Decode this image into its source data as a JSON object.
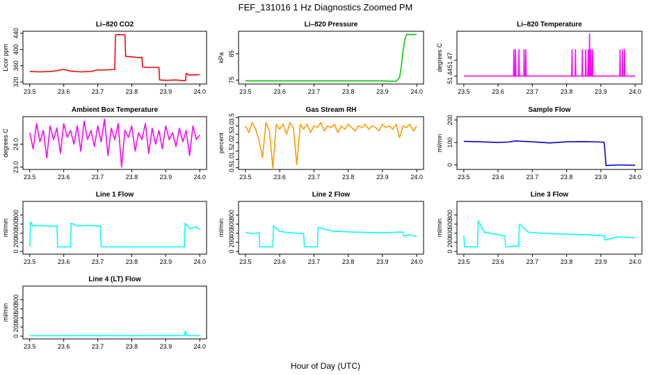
{
  "figure": {
    "title": "FEF_131016  1 Hz Diagnostics Zoomed PM",
    "xlabel": "Hour of Day (UTC)"
  },
  "chart_data": [
    {
      "type": "line",
      "title": "Li–820 CO2",
      "ylabel": "Licor ppm",
      "color": "#ff0000",
      "xlim": [
        23.48,
        24.02
      ],
      "ylim": [
        315,
        445
      ],
      "xticks": [
        23.5,
        23.6,
        23.7,
        23.8,
        23.9,
        24.0
      ],
      "xtick_labels": [
        "23.5",
        "23.6",
        "23.7",
        "23.8",
        "23.9",
        "24.0"
      ],
      "yticks": [
        320,
        360,
        400,
        440
      ],
      "ytick_labels": [
        "320",
        "360",
        "400",
        "440"
      ],
      "series": [
        {
          "x": [
            23.5,
            23.53,
            23.56,
            23.58,
            23.6,
            23.62,
            23.65,
            23.68,
            23.7,
            23.71,
            23.73,
            23.75,
            23.752,
            23.76,
            23.78,
            23.782,
            23.8,
            23.82,
            23.83,
            23.832,
            23.85,
            23.87,
            23.88,
            23.882,
            23.9,
            23.93,
            23.958,
            23.96,
            23.97,
            24.0
          ],
          "y": [
            346,
            345,
            346,
            348,
            351,
            347,
            345,
            346,
            350,
            349,
            350,
            351,
            436,
            437,
            436,
            383,
            382,
            380,
            381,
            357,
            356,
            356,
            355,
            325,
            324,
            325,
            323,
            341,
            337,
            338
          ]
        }
      ]
    },
    {
      "type": "line",
      "title": "Li–820 Pressure",
      "ylabel": "kPa",
      "color": "#00cc00",
      "xlim": [
        23.48,
        24.02
      ],
      "ylim": [
        73.5,
        93.5
      ],
      "xticks": [
        23.5,
        23.6,
        23.7,
        23.8,
        23.9,
        24.0
      ],
      "xtick_labels": [
        "23.5",
        "23.6",
        "23.7",
        "23.8",
        "23.9",
        "24.0"
      ],
      "yticks": [
        75,
        85
      ],
      "ytick_labels": [
        "75",
        "85"
      ],
      "series": [
        {
          "x": [
            23.5,
            23.6,
            23.7,
            23.8,
            23.9,
            23.92,
            23.94,
            23.95,
            23.955,
            23.96,
            23.965,
            23.97,
            24.0
          ],
          "y": [
            74.7,
            74.7,
            74.7,
            74.7,
            74.7,
            74.6,
            74.5,
            76,
            80,
            86,
            90,
            92.3,
            92.3
          ]
        }
      ]
    },
    {
      "type": "line",
      "title": "Li–820 Temperature",
      "ylabel": "degrees C",
      "color": "#ff00ff",
      "xlim": [
        23.48,
        24.02
      ],
      "ylim": [
        51.425,
        51.525
      ],
      "xticks": [
        23.5,
        23.6,
        23.7,
        23.8,
        23.9,
        24.0
      ],
      "xtick_labels": [
        "23.5",
        "23.6",
        "23.7",
        "23.8",
        "23.9",
        "24.0"
      ],
      "yticks": [
        51.44,
        51.47
      ],
      "ytick_labels": [
        "51.44",
        "51.47"
      ],
      "series": [
        {
          "x": [
            23.5,
            23.645,
            23.646,
            23.647,
            23.65,
            23.651,
            23.652,
            23.66,
            23.661,
            23.662,
            23.675,
            23.676,
            23.677,
            23.68,
            23.681,
            23.682,
            23.815,
            23.816,
            23.817,
            23.825,
            23.826,
            23.827,
            23.845,
            23.846,
            23.847,
            23.855,
            23.856,
            23.857,
            23.862,
            23.863,
            23.864,
            23.866,
            23.867,
            23.868,
            23.87,
            23.871,
            23.872,
            23.875,
            23.876,
            23.877,
            23.955,
            23.956,
            23.957,
            23.962,
            23.963,
            23.964,
            23.968,
            23.969,
            23.97,
            24.0
          ],
          "y": [
            51.44,
            51.44,
            51.49,
            51.44,
            51.44,
            51.49,
            51.44,
            51.44,
            51.49,
            51.44,
            51.44,
            51.49,
            51.44,
            51.44,
            51.49,
            51.44,
            51.44,
            51.49,
            51.44,
            51.44,
            51.49,
            51.44,
            51.44,
            51.49,
            51.44,
            51.44,
            51.49,
            51.44,
            51.44,
            51.49,
            51.44,
            51.44,
            51.52,
            51.44,
            51.44,
            51.49,
            51.44,
            51.44,
            51.49,
            51.44,
            51.44,
            51.49,
            51.44,
            51.44,
            51.49,
            51.44,
            51.44,
            51.49,
            51.44,
            51.44
          ]
        }
      ]
    },
    {
      "type": "line",
      "title": "Ambient Box Temperature",
      "ylabel": "degrees C",
      "color": "#ff00ff",
      "xlim": [
        23.48,
        24.02
      ],
      "ylim": [
        22.9,
        25.2
      ],
      "xticks": [
        23.5,
        23.6,
        23.7,
        23.8,
        23.9,
        24.0
      ],
      "xtick_labels": [
        "23.5",
        "23.6",
        "23.7",
        "23.8",
        "23.9",
        "24.0"
      ],
      "yticks": [
        23.0,
        24.0
      ],
      "ytick_labels": [
        "23.0",
        "24.0"
      ],
      "series": [
        {
          "x": [
            23.5,
            23.51,
            23.52,
            23.53,
            23.54,
            23.55,
            23.56,
            23.57,
            23.58,
            23.59,
            23.6,
            23.61,
            23.62,
            23.63,
            23.64,
            23.65,
            23.66,
            23.67,
            23.68,
            23.69,
            23.7,
            23.71,
            23.72,
            23.73,
            23.74,
            23.75,
            23.76,
            23.77,
            23.78,
            23.79,
            23.8,
            23.81,
            23.82,
            23.83,
            23.84,
            23.85,
            23.86,
            23.87,
            23.88,
            23.89,
            23.9,
            23.91,
            23.92,
            23.93,
            23.94,
            23.95,
            23.96,
            23.97,
            23.98,
            23.99,
            24.0
          ],
          "y": [
            24.5,
            23.8,
            24.9,
            24.1,
            24.6,
            23.4,
            24.8,
            24.2,
            24.7,
            23.6,
            24.9,
            24.3,
            24.6,
            24.0,
            24.8,
            23.7,
            25.0,
            24.2,
            24.6,
            23.9,
            24.8,
            24.1,
            25.1,
            23.5,
            24.7,
            24.2,
            24.9,
            23.0,
            24.6,
            24.3,
            24.8,
            23.7,
            24.5,
            24.2,
            24.9,
            23.6,
            24.7,
            24.0,
            24.6,
            23.8,
            24.8,
            24.2,
            24.5,
            23.9,
            24.7,
            24.1,
            24.6,
            23.5,
            24.8,
            24.2,
            24.4
          ]
        }
      ]
    },
    {
      "type": "line",
      "title": "Gas Stream RH",
      "ylabel": "percent",
      "color": "#ff9900",
      "xlim": [
        23.48,
        24.02
      ],
      "ylim": [
        0.4,
        3.55
      ],
      "xticks": [
        23.5,
        23.6,
        23.7,
        23.8,
        23.9,
        24.0
      ],
      "xtick_labels": [
        "23.5",
        "23.6",
        "23.7",
        "23.8",
        "23.9",
        "24.0"
      ],
      "yticks": [
        0.5,
        1.0,
        1.5,
        2.0,
        2.5,
        3.0,
        3.5
      ],
      "ytick_labels": [
        "0.5",
        "1.0",
        "1.5",
        "2.0",
        "2.5",
        "3.0",
        "3.5"
      ],
      "series": [
        {
          "x": [
            23.5,
            23.51,
            23.52,
            23.53,
            23.54,
            23.55,
            23.56,
            23.57,
            23.58,
            23.59,
            23.6,
            23.61,
            23.62,
            23.63,
            23.64,
            23.65,
            23.66,
            23.67,
            23.68,
            23.69,
            23.7,
            23.71,
            23.72,
            23.73,
            23.74,
            23.75,
            23.76,
            23.77,
            23.78,
            23.79,
            23.8,
            23.81,
            23.82,
            23.83,
            23.84,
            23.85,
            23.86,
            23.87,
            23.88,
            23.89,
            23.9,
            23.91,
            23.92,
            23.93,
            23.94,
            23.95,
            23.96,
            23.97,
            23.98,
            23.99,
            24.0
          ],
          "y": [
            3.0,
            2.6,
            3.2,
            2.8,
            2.1,
            1.1,
            3.2,
            2.7,
            0.5,
            3.1,
            2.8,
            3.1,
            2.5,
            3.2,
            2.9,
            0.7,
            3.1,
            2.8,
            3.1,
            2.6,
            3.0,
            2.9,
            3.2,
            2.7,
            3.0,
            2.9,
            3.1,
            2.6,
            3.0,
            2.8,
            3.1,
            2.9,
            2.7,
            3.0,
            2.9,
            3.1,
            2.8,
            3.0,
            2.9,
            2.7,
            3.1,
            2.9,
            3.0,
            2.8,
            3.1,
            2.3,
            3.0,
            2.9,
            3.1,
            2.7,
            3.0
          ]
        }
      ]
    },
    {
      "type": "line",
      "title": "Sample Flow",
      "ylabel": "ml/min",
      "color": "#0000cc",
      "xlim": [
        23.48,
        24.02
      ],
      "ylim": [
        -20,
        215
      ],
      "xticks": [
        23.5,
        23.6,
        23.7,
        23.8,
        23.9,
        24.0
      ],
      "xtick_labels": [
        "23.5",
        "23.6",
        "23.7",
        "23.8",
        "23.9",
        "24.0"
      ],
      "yticks": [
        0,
        100,
        200
      ],
      "ytick_labels": [
        "0",
        "100",
        "200"
      ],
      "series": [
        {
          "x": [
            23.5,
            23.55,
            23.6,
            23.63,
            23.65,
            23.7,
            23.75,
            23.8,
            23.85,
            23.9,
            23.91,
            23.915,
            23.92,
            23.95,
            24.0
          ],
          "y": [
            105,
            103,
            100,
            102,
            107,
            103,
            98,
            103,
            104,
            102,
            100,
            -3,
            -2,
            0,
            -1
          ]
        }
      ]
    },
    {
      "type": "line",
      "title": "Line 1 Flow",
      "ylabel": "ml/min",
      "color": "#00ffff",
      "xlim": [
        23.48,
        24.02
      ],
      "ylim": [
        -60,
        1100
      ],
      "xticks": [
        23.5,
        23.6,
        23.7,
        23.8,
        23.9,
        24.0
      ],
      "xtick_labels": [
        "23.5",
        "23.6",
        "23.7",
        "23.8",
        "23.9",
        "24.0"
      ],
      "yticks": [
        0,
        200,
        400,
        600,
        800
      ],
      "ytick_labels": [
        "0",
        "200",
        "400",
        "600",
        "800"
      ],
      "series": [
        {
          "x": [
            23.5,
            23.502,
            23.51,
            23.53,
            23.55,
            23.58,
            23.582,
            23.62,
            23.622,
            23.64,
            23.67,
            23.7,
            23.708,
            23.71,
            23.8,
            23.9,
            23.955,
            23.957,
            23.97,
            23.99,
            24.0
          ],
          "y": [
            100,
            650,
            560,
            570,
            560,
            555,
            100,
            100,
            620,
            560,
            570,
            560,
            555,
            100,
            100,
            100,
            100,
            620,
            500,
            540,
            470
          ]
        }
      ]
    },
    {
      "type": "line",
      "title": "Line 2 Flow",
      "ylabel": "ml/min",
      "color": "#00ffff",
      "xlim": [
        23.48,
        24.02
      ],
      "ylim": [
        -60,
        1100
      ],
      "xticks": [
        23.5,
        23.6,
        23.7,
        23.8,
        23.9,
        24.0
      ],
      "xtick_labels": [
        "23.5",
        "23.6",
        "23.7",
        "23.8",
        "23.9",
        "24.0"
      ],
      "yticks": [
        0,
        200,
        400,
        600,
        800
      ],
      "ytick_labels": [
        "0",
        "200",
        "400",
        "600",
        "800"
      ],
      "series": [
        {
          "x": [
            23.5,
            23.52,
            23.54,
            23.542,
            23.58,
            23.582,
            23.6,
            23.63,
            23.67,
            23.672,
            23.71,
            23.712,
            23.75,
            23.8,
            23.85,
            23.9,
            23.96,
            23.962,
            23.98,
            24.0
          ],
          "y": [
            420,
            390,
            410,
            100,
            100,
            560,
            440,
            410,
            390,
            100,
            100,
            530,
            450,
            430,
            420,
            410,
            430,
            330,
            370,
            320
          ]
        }
      ]
    },
    {
      "type": "line",
      "title": "Line 3 Flow",
      "ylabel": "ml/min",
      "color": "#00ffff",
      "xlim": [
        23.48,
        24.02
      ],
      "ylim": [
        -60,
        1100
      ],
      "xticks": [
        23.5,
        23.6,
        23.7,
        23.8,
        23.9,
        24.0
      ],
      "xtick_labels": [
        "23.5",
        "23.6",
        "23.7",
        "23.8",
        "23.9",
        "24.0"
      ],
      "yticks": [
        0,
        200,
        400,
        600,
        800
      ],
      "ytick_labels": [
        "0",
        "200",
        "400",
        "600",
        "800"
      ],
      "series": [
        {
          "x": [
            23.5,
            23.502,
            23.505,
            23.54,
            23.542,
            23.56,
            23.6,
            23.62,
            23.622,
            23.66,
            23.662,
            23.69,
            23.75,
            23.8,
            23.85,
            23.9,
            23.91,
            23.912,
            23.95,
            24.0
          ],
          "y": [
            350,
            100,
            100,
            100,
            680,
            420,
            370,
            340,
            100,
            120,
            600,
            420,
            390,
            380,
            370,
            350,
            340,
            250,
            320,
            300
          ]
        }
      ]
    },
    {
      "type": "line",
      "title": "Line 4 (LT) Flow",
      "ylabel": "ml/min",
      "color": "#00ffff",
      "xlim": [
        23.48,
        24.02
      ],
      "ylim": [
        -60,
        1100
      ],
      "xticks": [
        23.5,
        23.6,
        23.7,
        23.8,
        23.9,
        24.0
      ],
      "xtick_labels": [
        "23.5",
        "23.6",
        "23.7",
        "23.8",
        "23.9",
        "24.0"
      ],
      "yticks": [
        0,
        200,
        400,
        600,
        800
      ],
      "ytick_labels": [
        "0",
        "200",
        "400",
        "600",
        "800"
      ],
      "series": [
        {
          "x": [
            23.5,
            23.6,
            23.7,
            23.8,
            23.9,
            23.955,
            23.957,
            23.96,
            23.962,
            24.0
          ],
          "y": [
            10,
            10,
            12,
            10,
            12,
            12,
            110,
            60,
            12,
            10
          ]
        }
      ]
    }
  ]
}
